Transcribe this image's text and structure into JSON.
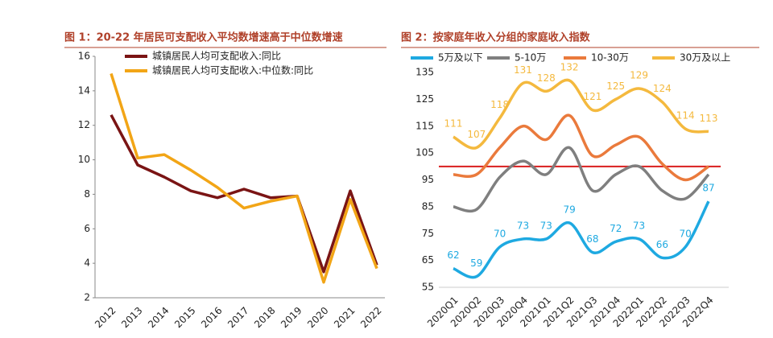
{
  "chart_data": [
    {
      "type": "line",
      "title": "图 1：20-22 年居民可支配收入平均数增速高于中位数增速",
      "categories": [
        "2012",
        "2013",
        "2014",
        "2015",
        "2016",
        "2017",
        "2018",
        "2019",
        "2020",
        "2021",
        "2022"
      ],
      "series": [
        {
          "name": "城镇居民人均可支配收入:同比",
          "color": "#7a1414",
          "values": [
            12.6,
            9.7,
            9.0,
            8.2,
            7.8,
            8.3,
            7.8,
            7.9,
            3.5,
            8.2,
            3.9
          ]
        },
        {
          "name": "城镇居民人均可支配收入:中位数:同比",
          "color": "#f2a516",
          "values": [
            15.0,
            10.1,
            10.3,
            9.4,
            8.4,
            7.2,
            7.6,
            7.9,
            2.9,
            7.7,
            3.7
          ]
        }
      ],
      "ylim": [
        2,
        16
      ],
      "yticks": [
        2,
        4,
        6,
        8,
        10,
        12,
        14,
        16
      ],
      "legend": "top",
      "smooth": false,
      "grid": false
    },
    {
      "type": "line",
      "title": "图 2：按家庭年收入分组的家庭收入指数",
      "categories": [
        "2020Q1",
        "2020Q2",
        "2020Q3",
        "2020Q4",
        "2021Q1",
        "2021Q2",
        "2021Q3",
        "2021Q4",
        "2022Q1",
        "2022Q2",
        "2022Q3",
        "2022Q4"
      ],
      "series": [
        {
          "name": "5万及以下",
          "color": "#1ea9e1",
          "data_labels": true,
          "values": [
            62,
            59,
            70,
            73,
            73,
            79,
            68,
            72,
            73,
            66,
            70,
            87
          ]
        },
        {
          "name": "5-10万",
          "color": "#7f7f7f",
          "data_labels": false,
          "values": [
            85,
            84,
            96,
            102,
            97,
            107,
            91,
            97,
            100,
            91,
            88,
            97
          ]
        },
        {
          "name": "10-30万",
          "color": "#ea7a3c",
          "data_labels": false,
          "values": [
            97,
            97,
            107,
            115,
            110,
            119,
            104,
            108,
            111,
            101,
            95,
            100
          ]
        },
        {
          "name": "30万及以上",
          "color": "#f4b93e",
          "data_labels": true,
          "values": [
            111,
            107,
            118,
            131,
            128,
            132,
            121,
            125,
            129,
            124,
            114,
            113
          ]
        }
      ],
      "ylim": [
        55,
        135
      ],
      "yticks": [
        55,
        65,
        75,
        85,
        95,
        105,
        115,
        125,
        135
      ],
      "reference_line": {
        "value": 100,
        "color": "#d91e1e"
      },
      "legend": "top",
      "smooth": true,
      "grid": false
    }
  ]
}
